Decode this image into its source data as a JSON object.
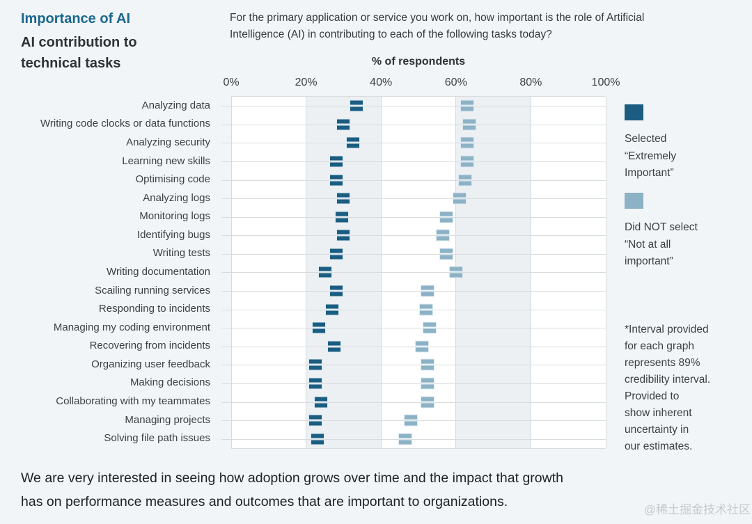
{
  "header": {
    "kicker": "Importance of AI",
    "title": "AI contribution to\ntechnical tasks",
    "question": "For the primary application or service you work on, how important is the role of Artificial\nIntelligence (AI) in contributing to each of the following tasks today?"
  },
  "chart_data": {
    "type": "scatter",
    "variant": "interval-dot-plot",
    "title": "% of respondents",
    "x_ticks": [
      "0%",
      "20%",
      "40%",
      "60%",
      "80%",
      "100%"
    ],
    "xlim": [
      0,
      100
    ],
    "grid": true,
    "legend_position": "right",
    "interval_width_pct": 3,
    "categories": [
      "Analyzing data",
      "Writing code clocks or data functions",
      "Analyzing security",
      "Learning new skills",
      "Optimising code",
      "Analyzing logs",
      "Monitoring logs",
      "Identifying bugs",
      "Writing tests",
      "Writing documentation",
      "Scailing running services",
      "Responding to incidents",
      "Managing my coding environment",
      "Recovering from incidents",
      "Organizing user feedback",
      "Making decisions",
      "Collaborating with my teammates",
      "Managing projects",
      "Solving file path issues"
    ],
    "series": [
      {
        "name": "Selected “Extremely Important”",
        "color": "#1b5d80",
        "values": [
          33.5,
          30,
          32.5,
          28,
          28,
          30,
          29.5,
          30,
          28,
          25,
          28,
          27,
          23.5,
          27.5,
          22.5,
          22.5,
          24,
          22.5,
          23
        ]
      },
      {
        "name": "Did NOT select “Not at all important”",
        "color": "#8db2c5",
        "values": [
          63,
          63.5,
          63,
          63,
          62.5,
          61,
          57.5,
          56.5,
          57.5,
          60,
          52.5,
          52,
          53,
          51,
          52.5,
          52.5,
          52.5,
          48,
          46.5
        ]
      }
    ]
  },
  "legend": {
    "extremely_important_label": "Selected\n“Extremely\nImportant”",
    "not_at_all_label": "Did NOT select\n“Not at all\nimportant”",
    "interval_note": "*Interval provided\nfor each graph\nrepresents 89%\ncredibility interval.\nProvided to\nshow inherent\nuncertainty in\nour estimates."
  },
  "footer": {
    "text": "We are very interested in seeing how adoption grows over time and the impact that growth\nhas on performance measures and outcomes that are important to organizations.",
    "watermark": "@稀土掘金技术社区"
  }
}
